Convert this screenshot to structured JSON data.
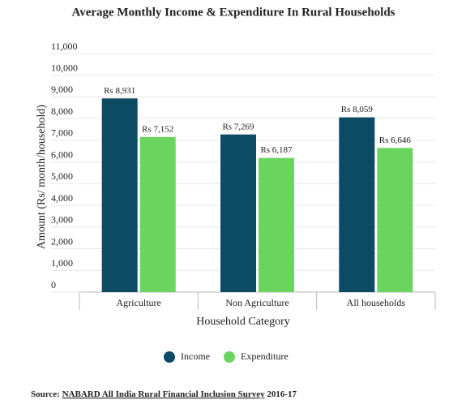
{
  "chart_data": {
    "type": "bar",
    "title": "Average Monthly Income & Expenditure In Rural Households",
    "categories": [
      "Agriculture",
      "Non Agriculture",
      "All households"
    ],
    "series": [
      {
        "name": "Income",
        "color": "#0d4a63",
        "values": [
          8931,
          7269,
          8059
        ],
        "value_labels": [
          "Rs 8,931",
          "Rs 7,269",
          "Rs 8,059"
        ]
      },
      {
        "name": "Expenditure",
        "color": "#6bd45f",
        "values": [
          7152,
          6187,
          6646
        ],
        "value_labels": [
          "Rs 7,152",
          "Rs 6,187",
          "Rs 6,646"
        ]
      }
    ],
    "x_label": "Household Category",
    "y_label": "Amount (Rs/ month/household)",
    "ylim": [
      0,
      11000
    ],
    "yticks": [
      0,
      {
        "value": 1000,
        "label": "1,000"
      },
      {
        "value": 2000,
        "label": "2,000"
      },
      {
        "value": 3000,
        "label": "3,000"
      },
      {
        "value": 4000,
        "label": "4,000"
      },
      {
        "value": 5000,
        "label": "5,000"
      },
      {
        "value": 6000,
        "label": "6,000"
      },
      {
        "value": 7000,
        "label": "7,000"
      },
      {
        "value": 8000,
        "label": "8,000"
      },
      {
        "value": 9000,
        "label": "9,000"
      },
      {
        "value": 10000,
        "label": "10,000"
      },
      {
        "value": 11000,
        "label": "11,000"
      }
    ],
    "grid": true,
    "legend": "bottom"
  },
  "source": {
    "prefix": "Source:",
    "link": "NABARD All India Rural Financial Inclusion Survey",
    "suffix": "2016-17"
  }
}
